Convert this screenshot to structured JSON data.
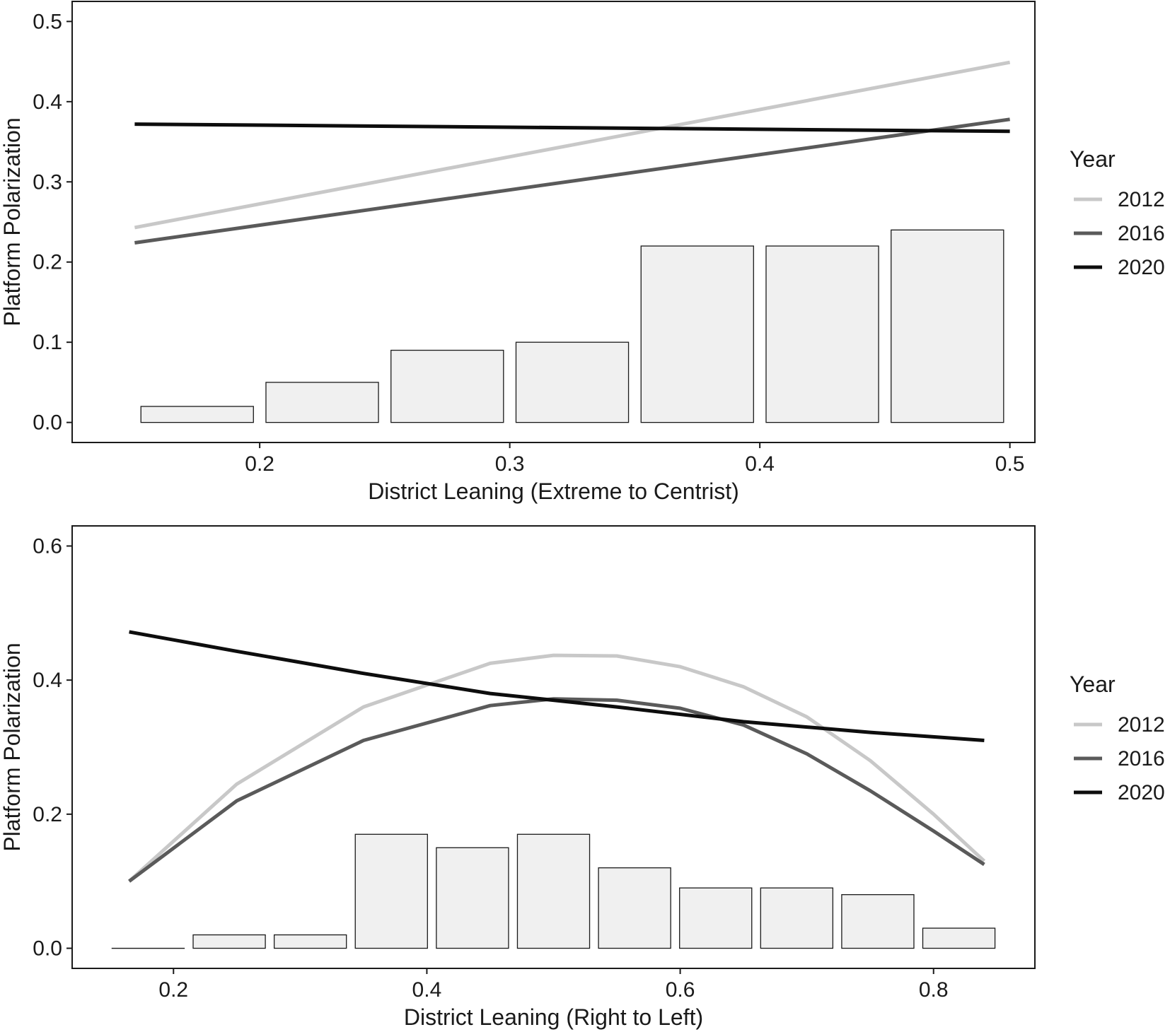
{
  "colors": {
    "2012": "#c8c8c8",
    "2016": "#5a5a5a",
    "2020": "#0d0d0d",
    "bar_fill": "#f0f0f0",
    "bar_stroke": "#1a1a1a"
  },
  "chart_data": [
    {
      "type": "line",
      "title": "",
      "xlabel": "District Leaning (Extreme to Centrist)",
      "ylabel": "Platform Polarization",
      "xlim": [
        0.125,
        0.51
      ],
      "ylim": [
        -0.025,
        0.525
      ],
      "xticks": [
        0.2,
        0.3,
        0.4,
        0.5
      ],
      "xtick_labels": [
        "0.2",
        "0.3",
        "0.4",
        "0.5"
      ],
      "yticks": [
        0.0,
        0.1,
        0.2,
        0.3,
        0.4,
        0.5
      ],
      "ytick_labels": [
        "0.0",
        "0.1",
        "0.2",
        "0.3",
        "0.4",
        "0.5"
      ],
      "legend": {
        "title": "Year",
        "position": "right",
        "entries": [
          "2012",
          "2016",
          "2020"
        ]
      },
      "bars": {
        "x_centers": [
          0.175,
          0.225,
          0.275,
          0.325,
          0.375,
          0.425,
          0.475
        ],
        "width": 0.045,
        "heights": [
          0.02,
          0.05,
          0.09,
          0.1,
          0.22,
          0.22,
          0.24
        ]
      },
      "series": [
        {
          "name": "2012",
          "x": [
            0.15,
            0.5
          ],
          "y": [
            0.243,
            0.449
          ]
        },
        {
          "name": "2016",
          "x": [
            0.15,
            0.5
          ],
          "y": [
            0.224,
            0.378
          ]
        },
        {
          "name": "2020",
          "x": [
            0.15,
            0.5
          ],
          "y": [
            0.372,
            0.363
          ]
        }
      ]
    },
    {
      "type": "line",
      "title": "",
      "xlabel": "District Leaning (Right to Left)",
      "ylabel": "Platform Polarization",
      "xlim": [
        0.12,
        0.88
      ],
      "ylim": [
        -0.03,
        0.63
      ],
      "xticks": [
        0.2,
        0.4,
        0.6,
        0.8
      ],
      "xtick_labels": [
        "0.2",
        "0.4",
        "0.6",
        "0.8"
      ],
      "yticks": [
        0.0,
        0.2,
        0.4,
        0.6
      ],
      "ytick_labels": [
        "0.0",
        "0.2",
        "0.4",
        "0.6"
      ],
      "legend": {
        "title": "Year",
        "position": "right",
        "entries": [
          "2012",
          "2016",
          "2020"
        ]
      },
      "bars": {
        "x_centers": [
          0.18,
          0.244,
          0.308,
          0.372,
          0.436,
          0.5,
          0.564,
          0.628,
          0.692,
          0.756,
          0.82
        ],
        "width": 0.057,
        "heights": [
          0.0,
          0.02,
          0.02,
          0.17,
          0.15,
          0.17,
          0.12,
          0.09,
          0.09,
          0.08,
          0.03
        ]
      },
      "series": [
        {
          "name": "2012",
          "x": [
            0.165,
            0.25,
            0.35,
            0.45,
            0.5,
            0.55,
            0.6,
            0.65,
            0.7,
            0.75,
            0.8,
            0.84
          ],
          "y": [
            0.1,
            0.245,
            0.36,
            0.425,
            0.437,
            0.436,
            0.42,
            0.39,
            0.345,
            0.28,
            0.2,
            0.13
          ]
        },
        {
          "name": "2016",
          "x": [
            0.165,
            0.25,
            0.35,
            0.45,
            0.5,
            0.55,
            0.6,
            0.65,
            0.7,
            0.75,
            0.8,
            0.84
          ],
          "y": [
            0.1,
            0.22,
            0.31,
            0.362,
            0.372,
            0.37,
            0.358,
            0.333,
            0.29,
            0.235,
            0.175,
            0.125
          ]
        },
        {
          "name": "2020",
          "x": [
            0.165,
            0.25,
            0.35,
            0.45,
            0.55,
            0.65,
            0.75,
            0.84
          ],
          "y": [
            0.472,
            0.443,
            0.41,
            0.38,
            0.36,
            0.338,
            0.322,
            0.31
          ]
        }
      ]
    }
  ]
}
